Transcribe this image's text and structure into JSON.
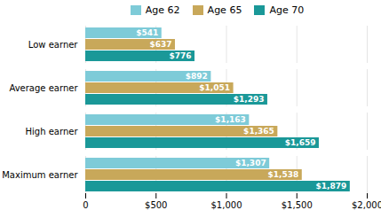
{
  "chart_data": {
    "type": "bar",
    "orientation": "horizontal",
    "categories": [
      "Low earner",
      "Average earner",
      "High earner",
      "Maximum earner"
    ],
    "series": [
      {
        "name": "Age 62",
        "color": "#7ecbd8",
        "values": [
          541,
          892,
          1163,
          1307
        ],
        "value_labels": [
          "$541",
          "$892",
          "$1,163",
          "$1,307"
        ]
      },
      {
        "name": "Age 65",
        "color": "#c8a85a",
        "values": [
          637,
          1051,
          1365,
          1538
        ],
        "value_labels": [
          "$637",
          "$1,051",
          "$1,365",
          "$1,538"
        ]
      },
      {
        "name": "Age 70",
        "color": "#1a9898",
        "values": [
          776,
          1293,
          1659,
          1879
        ],
        "value_labels": [
          "$776",
          "$1,293",
          "$1,659",
          "$1,879"
        ]
      }
    ],
    "xlim": [
      0,
      2000
    ],
    "xticks": [
      0,
      {
        "value": 500,
        "label": "$500"
      },
      {
        "value": 1000,
        "label": "$1,000"
      },
      {
        "value": 1500,
        "label": "$1,500"
      },
      {
        "value": 2000,
        "label": "$2,000"
      }
    ],
    "grid": true,
    "legend": "top",
    "data_labels": true
  }
}
